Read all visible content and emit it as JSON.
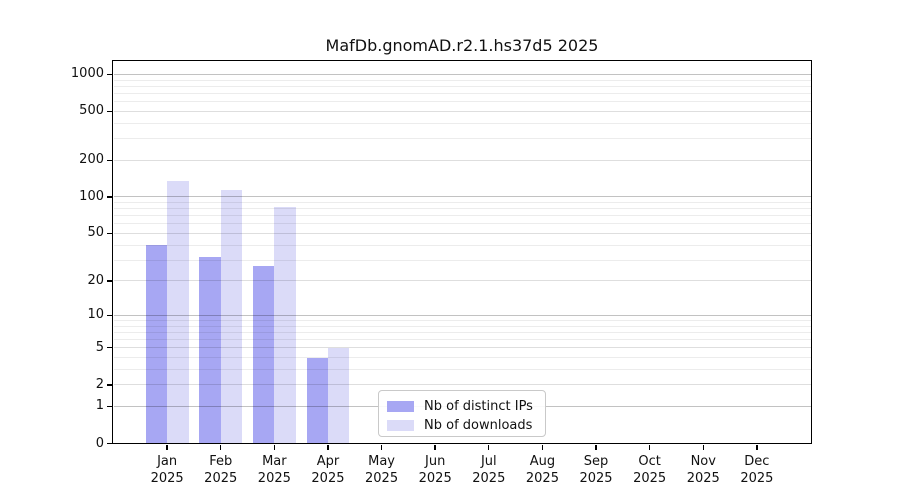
{
  "chart_data": {
    "type": "bar",
    "title": "MafDb.gnomAD.r2.1.hs37d5 2025",
    "categories": [
      "Jan 2025",
      "Feb 2025",
      "Mar 2025",
      "Apr 2025",
      "May 2025",
      "Jun 2025",
      "Jul 2025",
      "Aug 2025",
      "Sep 2025",
      "Oct 2025",
      "Nov 2025",
      "Dec 2025"
    ],
    "x_tick_months": [
      "Jan",
      "Feb",
      "Mar",
      "Apr",
      "May",
      "Jun",
      "Jul",
      "Aug",
      "Sep",
      "Oct",
      "Nov",
      "Dec"
    ],
    "x_tick_year": "2025",
    "series": [
      {
        "name": "Nb of distinct IPs",
        "color": "#a7a7f3",
        "values": [
          40,
          32,
          27,
          4,
          0,
          0,
          0,
          0,
          0,
          0,
          0,
          0
        ]
      },
      {
        "name": "Nb of downloads",
        "color": "#dbdbf8",
        "values": [
          136,
          115,
          83,
          5,
          0,
          0,
          0,
          0,
          0,
          0,
          0,
          0
        ]
      }
    ],
    "yscale": "log1p",
    "ylim": [
      0,
      1275
    ],
    "yticks": [
      0,
      1,
      2,
      5,
      10,
      20,
      50,
      100,
      200,
      500,
      1000
    ],
    "yticks_minor": [
      3,
      4,
      6,
      7,
      8,
      9,
      30,
      40,
      60,
      70,
      80,
      90,
      300,
      400,
      600,
      700,
      800,
      900
    ],
    "grid": true,
    "legend_position": "lower-center",
    "colors": {
      "grid_major": "rgba(0,0,0,0.24)",
      "grid_mid": "rgba(0,0,0,0.13)",
      "grid_minor": "rgba(0,0,0,0.075)",
      "spine": "#000000",
      "background": "#ffffff"
    }
  }
}
